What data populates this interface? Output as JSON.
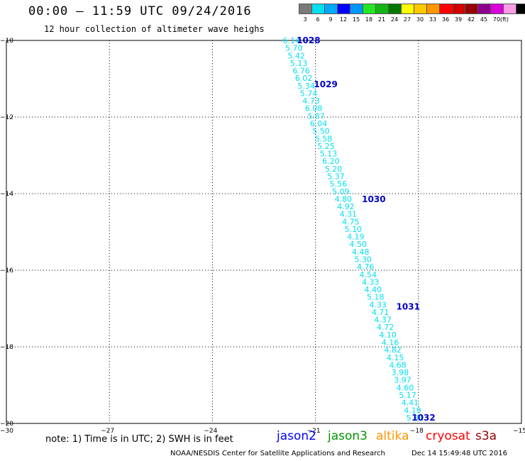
{
  "title": "00:00 – 11:59 UTC 09/24/2016",
  "subtitle": "12 hour collection of altimeter wave heighs",
  "color_scale": {
    "colors": [
      "#7a7a7a",
      "#00e0f0",
      "#00a8f8",
      "#0000ff",
      "#0096ff",
      "#22e822",
      "#14b414",
      "#007800",
      "#ffff00",
      "#ffc800",
      "#ff9600",
      "#ff0000",
      "#d20000",
      "#960000",
      "#8c008c",
      "#dc00dc",
      "#ff9be6",
      "#000000"
    ],
    "labels": [
      "3",
      "6",
      "9",
      "12",
      "15",
      "18",
      "21",
      "24",
      "27",
      "30",
      "33",
      "36",
      "39",
      "42",
      "45",
      "70"
    ],
    "unit": "(ft)"
  },
  "axes": {
    "lon_labels": [
      "−30",
      "−27",
      "−24",
      "−21",
      "−18",
      "−15"
    ],
    "lat_labels": [
      "−10",
      "−12",
      "−14",
      "−16",
      "−18",
      "−20"
    ],
    "lon_range": [
      -30,
      -15
    ],
    "lat_range": [
      -20,
      -10
    ]
  },
  "track": {
    "color": "#00e0f0",
    "lat_start": -10.0,
    "lat_end": -19.85,
    "lon_start": -21.7,
    "lon_end": -18.1,
    "values": [
      "6.14",
      "5.70",
      "5.42",
      "5.13",
      "6.76",
      "6.02",
      "5.34",
      "5.74",
      "4.73",
      "6.08",
      "5.87",
      "6.04",
      "5.50",
      "5.58",
      "5.25",
      "5.13",
      "6.20",
      "5.20",
      "5.37",
      "5.56",
      "5.09",
      "4.80",
      "4.92",
      "4.31",
      "4.75",
      "5.10",
      "4.19",
      "4.50",
      "4.48",
      "5.30",
      "4.76",
      "4.54",
      "4.33",
      "4.40",
      "5.18",
      "4.33",
      "4.71",
      "4.37",
      "4.72",
      "4.10",
      "4.16",
      "4.82",
      "4.15",
      "4.68",
      "3.98",
      "3.97",
      "4.60",
      "5.17",
      "4.41",
      "4.19",
      "5.31"
    ]
  },
  "time_labels": [
    {
      "text": "1028",
      "lon": -21.2,
      "lat": -10.0
    },
    {
      "text": "1029",
      "lon": -20.7,
      "lat": -11.15
    },
    {
      "text": "1030",
      "lon": -19.3,
      "lat": -14.15
    },
    {
      "text": "1031",
      "lon": -18.3,
      "lat": -16.95
    },
    {
      "text": "1032",
      "lon": -17.85,
      "lat": -19.85
    }
  ],
  "note": "note: 1) Time is in UTC; 2) SWH is in feet",
  "legend": [
    {
      "name": "jason2",
      "color": "#0000ff"
    },
    {
      "name": "jason3",
      "color": "#009600"
    },
    {
      "name": "altika",
      "color": "#ff9600"
    },
    {
      "name": "cryosat",
      "color": "#ff0000"
    },
    {
      "name": "s3a",
      "color": "#960000"
    }
  ],
  "credit": "NOAA/NESDIS Center for Satellite Applications and Research",
  "timestamp": "Dec 14 15:49:48 UTC 2016"
}
